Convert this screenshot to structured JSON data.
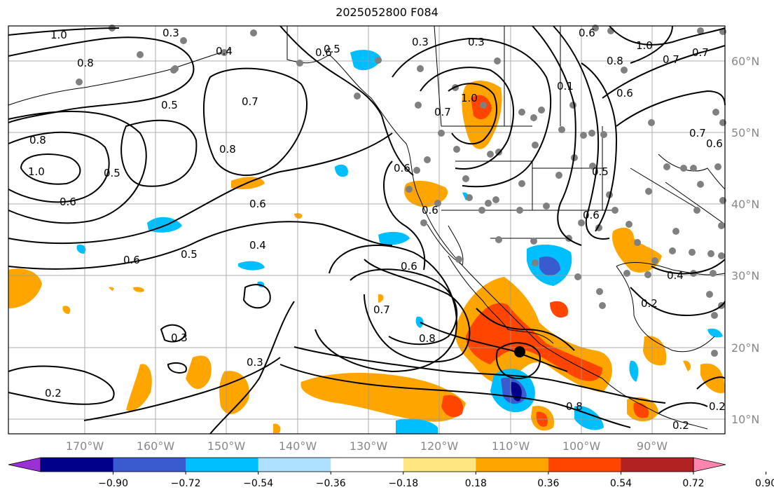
{
  "title": "2025052800 F084",
  "map": {
    "lon_labels": [
      "170°W",
      "160°W",
      "150°W",
      "140°W",
      "130°W",
      "120°W",
      "110°W",
      "100°W",
      "90°W"
    ],
    "lat_labels": [
      "60°N",
      "50°N",
      "40°N",
      "30°N",
      "20°N",
      "10°N"
    ],
    "contour_labels": [
      "1.0",
      "0.8",
      "0.3",
      "0.5",
      "0.4",
      "0.6",
      "0.3",
      "0.3",
      "0.8",
      "1.0",
      "0.7",
      "0.6",
      "0.8",
      "0.5",
      "0.7",
      "0.6",
      "0.6",
      "0.6",
      "0.5",
      "0.4",
      "0.6",
      "0.6",
      "0.5",
      "0.6",
      "0.7",
      "0.7",
      "0.8",
      "0.3",
      "0.3",
      "0.2",
      "0.8",
      "0.2",
      "0.2",
      "0.4",
      "0.2",
      "0.6",
      "0.1",
      "1.0",
      "0.6",
      "0.8",
      "0.5",
      "0.7",
      "0.6",
      "1.0",
      "0.7"
    ]
  },
  "colorbar": {
    "tick_labels": [
      "−0.90",
      "−0.72",
      "−0.54",
      "−0.36",
      "−0.18",
      "0.18",
      "0.36",
      "0.54",
      "0.72",
      "0.90"
    ],
    "colors": [
      "#9b30d6",
      "#00008b",
      "#3a5bd0",
      "#00bfff",
      "#aee0ff",
      "#ffffff",
      "#ffe680",
      "#ffa500",
      "#ff4500",
      "#b22222",
      "#ff85b0"
    ]
  }
}
